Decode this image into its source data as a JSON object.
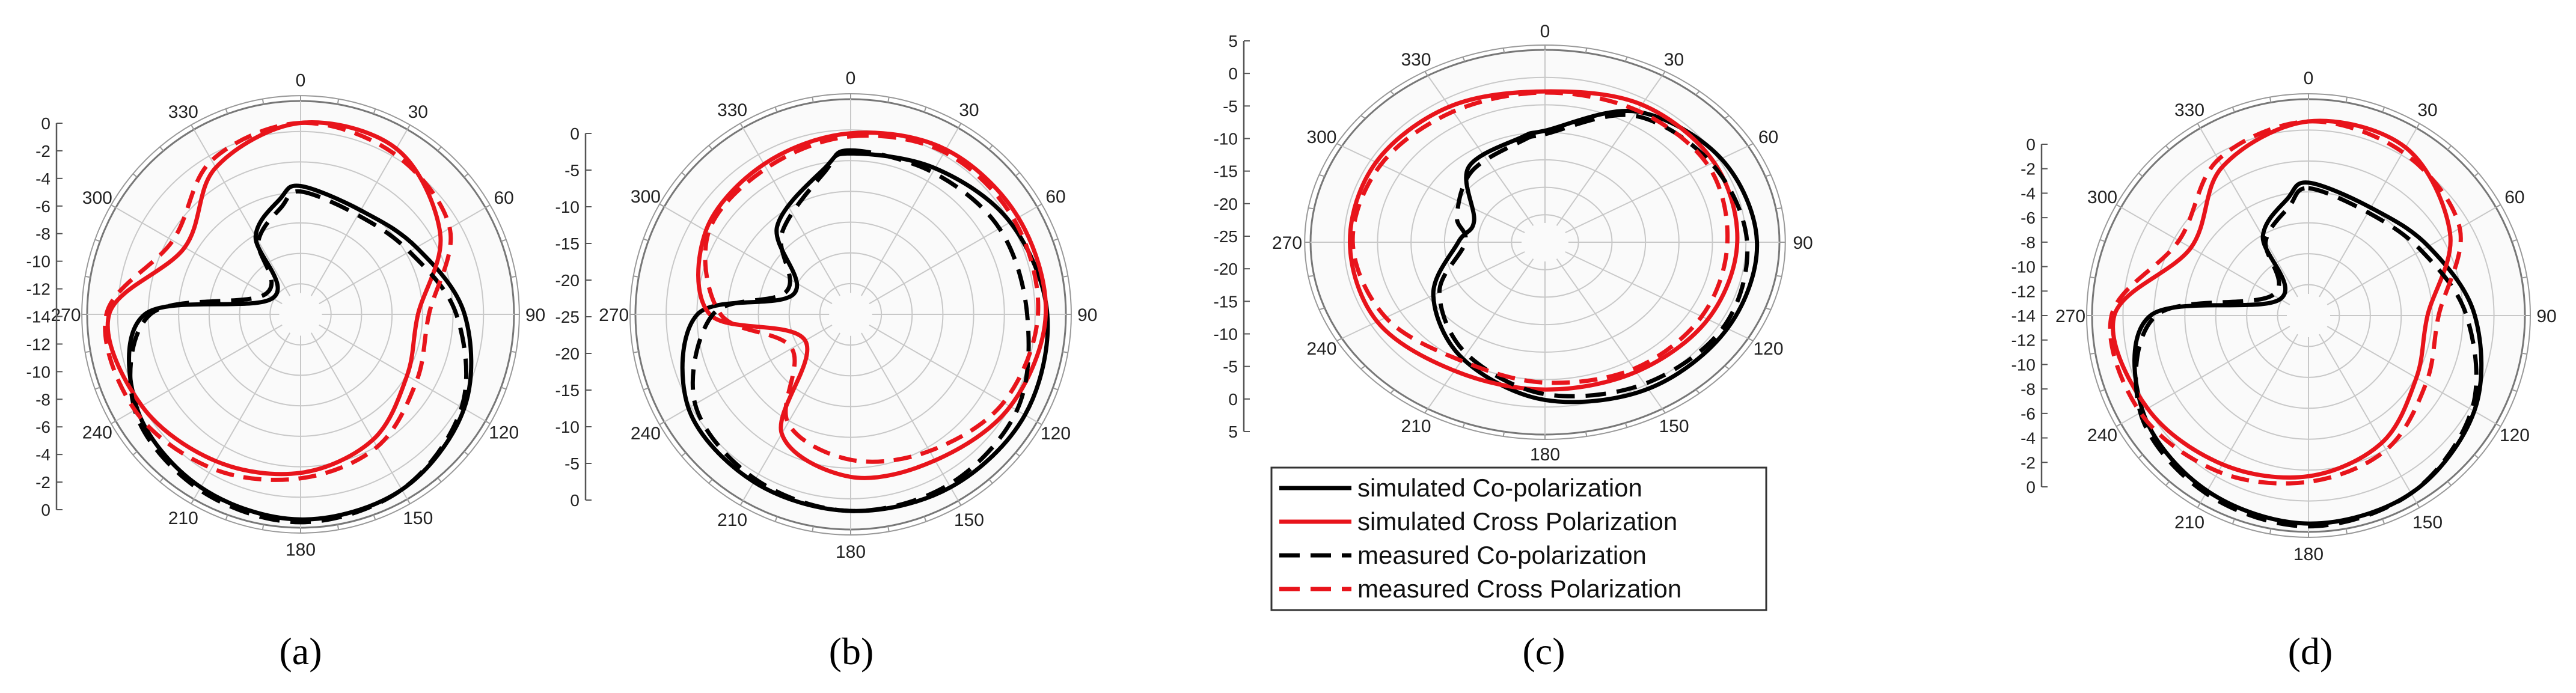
{
  "figure": {
    "series_names": [
      "simulated Co-polarization",
      "simulated Cross Polarization",
      "measured Co-polarization",
      "measured Cross Polarization"
    ],
    "series_colors": [
      "#000000",
      "#e8141b",
      "#000000",
      "#e8141b"
    ],
    "series_dashed": [
      false,
      false,
      true,
      true
    ]
  },
  "chart_data": [
    {
      "type": "polar-line",
      "caption": "(a)",
      "angle_labels": [
        "0",
        "30",
        "60",
        "90",
        "120",
        "150",
        "180",
        "210",
        "240",
        "270",
        "300",
        "330"
      ],
      "radial_ticks": [
        "0",
        "-2",
        "-4",
        "-6",
        "-8",
        "-10",
        "-12",
        "-14",
        "-12",
        "-10",
        "-8",
        "-6",
        "-4",
        "-2",
        "0"
      ],
      "radial_range": [
        -14,
        0
      ],
      "series": [
        {
          "name": "simulated Co-polarization",
          "angles": [
            0,
            30,
            60,
            90,
            120,
            150,
            180,
            210,
            240,
            270,
            300,
            330,
            350
          ],
          "values": [
            -6.2,
            -6.8,
            -5.8,
            -3.6,
            -1.8,
            -0.8,
            -0.6,
            -1.0,
            -1.8,
            -4.2,
            -13.2,
            -9.0,
            -7.0
          ]
        },
        {
          "name": "simulated Cross Polarization",
          "angles": [
            0,
            30,
            60,
            90,
            120,
            150,
            180,
            210,
            240,
            270,
            300,
            330
          ],
          "values": [
            -1.6,
            -1.6,
            -3.8,
            -7.0,
            -6.6,
            -5.0,
            -4.0,
            -3.2,
            -2.2,
            -1.6,
            -5.8,
            -3.2
          ]
        },
        {
          "name": "measured Co-polarization",
          "angles": [
            0,
            30,
            60,
            90,
            120,
            150,
            180,
            210,
            240,
            270,
            300,
            330,
            350
          ],
          "values": [
            -6.6,
            -7.2,
            -6.4,
            -4.2,
            -2.0,
            -0.8,
            -0.4,
            -0.8,
            -1.6,
            -4.6,
            -12.6,
            -9.4,
            -7.6
          ]
        },
        {
          "name": "measured Cross Polarization",
          "angles": [
            0,
            30,
            60,
            90,
            120,
            150,
            180,
            210,
            240,
            270,
            300,
            330
          ],
          "values": [
            -1.6,
            -2.0,
            -3.0,
            -6.2,
            -5.8,
            -4.4,
            -3.6,
            -2.6,
            -1.6,
            -1.4,
            -4.8,
            -2.6
          ]
        }
      ]
    },
    {
      "type": "polar-line",
      "caption": "(b)",
      "angle_labels": [
        "0",
        "30",
        "60",
        "90",
        "120",
        "150",
        "180",
        "210",
        "240",
        "270",
        "300",
        "330"
      ],
      "radial_ticks": [
        "0",
        "-5",
        "-10",
        "-15",
        "-20",
        "-25",
        "-20",
        "-15",
        "-10",
        "-5",
        "0"
      ],
      "radial_range": [
        -25,
        0
      ],
      "series": [
        {
          "name": "simulated Co-polarization",
          "angles": [
            0,
            30,
            60,
            90,
            120,
            150,
            180,
            210,
            240,
            270,
            290,
            320,
            350
          ],
          "values": [
            -7.0,
            -6.0,
            -4.0,
            -2.4,
            -1.8,
            -2.0,
            -2.4,
            -2.8,
            -3.6,
            -8.0,
            -20.0,
            -13.0,
            -8.6
          ]
        },
        {
          "name": "simulated Cross Polarization",
          "angles": [
            0,
            30,
            60,
            90,
            120,
            150,
            180,
            210,
            240,
            270,
            300,
            330
          ],
          "values": [
            -4.4,
            -3.2,
            -2.8,
            -2.6,
            -4.0,
            -6.0,
            -6.8,
            -10.0,
            -21.0,
            -9.6,
            -6.2,
            -5.4
          ]
        },
        {
          "name": "measured Co-polarization",
          "angles": [
            0,
            30,
            60,
            90,
            120,
            150,
            180,
            210,
            240,
            270,
            290,
            320,
            350
          ],
          "values": [
            -6.6,
            -6.6,
            -5.6,
            -5.0,
            -3.0,
            -2.4,
            -2.4,
            -3.2,
            -4.6,
            -10.0,
            -19.0,
            -14.0,
            -9.0
          ]
        },
        {
          "name": "measured Cross Polarization",
          "angles": [
            0,
            30,
            60,
            90,
            120,
            150,
            180,
            210,
            240,
            270,
            300,
            330
          ],
          "values": [
            -4.8,
            -3.6,
            -3.4,
            -3.6,
            -5.0,
            -7.4,
            -9.0,
            -11.6,
            -19.0,
            -11.0,
            -6.6,
            -6.0
          ]
        }
      ]
    },
    {
      "type": "polar-line",
      "caption": "(c)",
      "angle_labels": [
        "0",
        "30",
        "60",
        "90",
        "120",
        "150",
        "180",
        "210",
        "240",
        "270",
        "300",
        "330"
      ],
      "radial_ticks": [
        "5",
        "0",
        "-5",
        "-10",
        "-15",
        "-20",
        "-25",
        "-20",
        "-15",
        "-10",
        "-5",
        "0",
        "5"
      ],
      "radial_range": [
        -25,
        5
      ],
      "series": [
        {
          "name": "simulated Co-polarization",
          "angles": [
            0,
            30,
            60,
            90,
            120,
            150,
            180,
            210,
            240,
            270,
            290,
            320,
            350
          ],
          "values": [
            -9.0,
            -2.2,
            0.6,
            1.8,
            1.6,
            1.0,
            -1.0,
            -5.0,
            -10.0,
            -16.0,
            -17.6,
            -11.4,
            -9.8
          ]
        },
        {
          "name": "simulated Cross Polarization",
          "angles": [
            0,
            30,
            60,
            90,
            120,
            150,
            180,
            210,
            240,
            270,
            300,
            330
          ],
          "values": [
            -2.2,
            -0.8,
            -0.6,
            -1.0,
            -1.6,
            -2.4,
            -2.8,
            -2.6,
            -0.8,
            -0.6,
            -0.6,
            -1.2
          ]
        },
        {
          "name": "measured Co-polarization",
          "angles": [
            0,
            30,
            60,
            90,
            120,
            150,
            180,
            210,
            240,
            270,
            290,
            320,
            350
          ],
          "values": [
            -9.6,
            -3.0,
            -1.0,
            0.4,
            1.0,
            0.0,
            -2.0,
            -6.0,
            -11.0,
            -17.0,
            -15.0,
            -12.2,
            -10.4
          ]
        },
        {
          "name": "measured Cross Polarization",
          "angles": [
            0,
            30,
            60,
            90,
            120,
            150,
            180,
            210,
            240,
            270,
            300,
            330
          ],
          "values": [
            -2.4,
            -2.0,
            -1.6,
            -2.4,
            -2.6,
            -3.0,
            -4.0,
            -4.6,
            -2.2,
            -1.0,
            -1.4,
            -2.2
          ]
        }
      ]
    },
    {
      "type": "polar-line",
      "caption": "(d)",
      "angle_labels": [
        "0",
        "30",
        "60",
        "90",
        "120",
        "150",
        "180",
        "210",
        "240",
        "270",
        "300",
        "330"
      ],
      "radial_ticks": [
        "0",
        "-2",
        "-4",
        "-6",
        "-8",
        "-10",
        "-12",
        "-14",
        "-12",
        "-10",
        "-8",
        "-6",
        "-4",
        "-2",
        "0"
      ],
      "radial_range": [
        -14,
        0
      ],
      "series": [
        {
          "name": "simulated Co-polarization",
          "angles": [
            0,
            30,
            60,
            90,
            120,
            150,
            180,
            210,
            240,
            270,
            300,
            330,
            350
          ],
          "values": [
            -6.0,
            -6.6,
            -5.6,
            -3.6,
            -1.8,
            -0.8,
            -0.6,
            -1.0,
            -1.8,
            -4.2,
            -13.2,
            -9.0,
            -7.0
          ]
        },
        {
          "name": "simulated Cross Polarization",
          "angles": [
            0,
            30,
            60,
            90,
            120,
            150,
            180,
            210,
            240,
            270,
            300,
            330
          ],
          "values": [
            -1.6,
            -1.6,
            -3.8,
            -7.0,
            -6.6,
            -5.0,
            -4.0,
            -3.2,
            -2.2,
            -1.6,
            -5.8,
            -3.2
          ]
        },
        {
          "name": "measured Co-polarization",
          "angles": [
            0,
            30,
            60,
            90,
            120,
            150,
            180,
            210,
            240,
            270,
            300,
            330,
            350
          ],
          "values": [
            -6.4,
            -7.0,
            -6.2,
            -4.2,
            -2.0,
            -0.8,
            -0.4,
            -0.8,
            -1.6,
            -4.6,
            -12.6,
            -9.4,
            -7.6
          ]
        },
        {
          "name": "measured Cross Polarization",
          "angles": [
            0,
            30,
            60,
            90,
            120,
            150,
            180,
            210,
            240,
            270,
            300,
            330
          ],
          "values": [
            -1.6,
            -2.0,
            -3.0,
            -6.2,
            -5.8,
            -4.4,
            -3.6,
            -2.6,
            -1.6,
            -1.4,
            -4.8,
            -2.6
          ]
        }
      ]
    }
  ]
}
